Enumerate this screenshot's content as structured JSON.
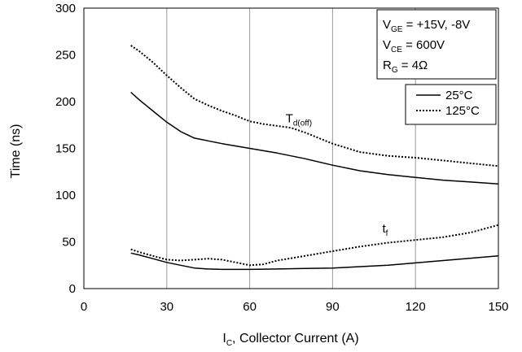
{
  "chart_data": {
    "type": "line",
    "xlabel": {
      "main": "I",
      "sub": "C",
      "rest": ", Collector Current (A)"
    },
    "ylabel": "Time (ns)",
    "xlim": [
      0,
      150
    ],
    "ylim": [
      0,
      300
    ],
    "xticks": [
      0,
      30,
      60,
      90,
      120,
      150
    ],
    "yticks": [
      0,
      50,
      100,
      150,
      200,
      250,
      300
    ],
    "grid": "vertical",
    "conditions": [
      {
        "main": "V",
        "sub": "GE",
        "rest": " = +15V, -8V"
      },
      {
        "main": "V",
        "sub": "CE",
        "rest": " = 600V"
      },
      {
        "main": "R",
        "sub": "G",
        "rest": " = 4Ω"
      }
    ],
    "legend": {
      "placement": "top-right",
      "entries": [
        {
          "label": "25°C",
          "style": "solid"
        },
        {
          "label": "125°C",
          "style": "dotted"
        }
      ]
    },
    "annotations": [
      {
        "main": "T",
        "sub": "d(off)",
        "x": 73,
        "y": 178
      },
      {
        "main": "t",
        "sub": "f",
        "x": 108,
        "y": 60
      }
    ],
    "series": [
      {
        "group": "Td(off)",
        "temperature": "25°C",
        "style": "solid",
        "x": [
          17,
          20,
          25,
          30,
          35,
          40,
          45,
          50,
          60,
          70,
          80,
          90,
          100,
          110,
          120,
          130,
          140,
          150
        ],
        "y": [
          210,
          202,
          190,
          178,
          168,
          161,
          158,
          155,
          150,
          145,
          139,
          132,
          126,
          122,
          119,
          116,
          114,
          112
        ]
      },
      {
        "group": "Td(off)",
        "temperature": "125°C",
        "style": "dotted",
        "x": [
          17,
          20,
          25,
          30,
          35,
          40,
          45,
          50,
          55,
          60,
          65,
          70,
          75,
          80,
          90,
          100,
          110,
          120,
          130,
          140,
          150
        ],
        "y": [
          260,
          254,
          242,
          228,
          215,
          203,
          196,
          190,
          185,
          179,
          176,
          174,
          172,
          167,
          155,
          146,
          142,
          140,
          137,
          134,
          131
        ]
      },
      {
        "group": "tf",
        "temperature": "25°C",
        "style": "solid",
        "x": [
          17,
          20,
          25,
          30,
          35,
          40,
          45,
          50,
          60,
          70,
          80,
          90,
          100,
          110,
          120,
          130,
          140,
          150
        ],
        "y": [
          38,
          36,
          32,
          28,
          25,
          22,
          21,
          20.5,
          20.5,
          21,
          21.5,
          22,
          23.5,
          25,
          27.5,
          30,
          32.5,
          35
        ]
      },
      {
        "group": "tf",
        "temperature": "125°C",
        "style": "dotted",
        "x": [
          17,
          20,
          25,
          30,
          35,
          40,
          45,
          50,
          55,
          60,
          65,
          70,
          80,
          90,
          100,
          110,
          120,
          130,
          140,
          150
        ],
        "y": [
          42,
          39,
          35,
          31,
          30,
          31,
          32,
          31,
          28,
          25,
          26,
          30,
          35,
          40,
          45,
          49,
          52,
          55,
          60,
          68
        ]
      }
    ]
  }
}
